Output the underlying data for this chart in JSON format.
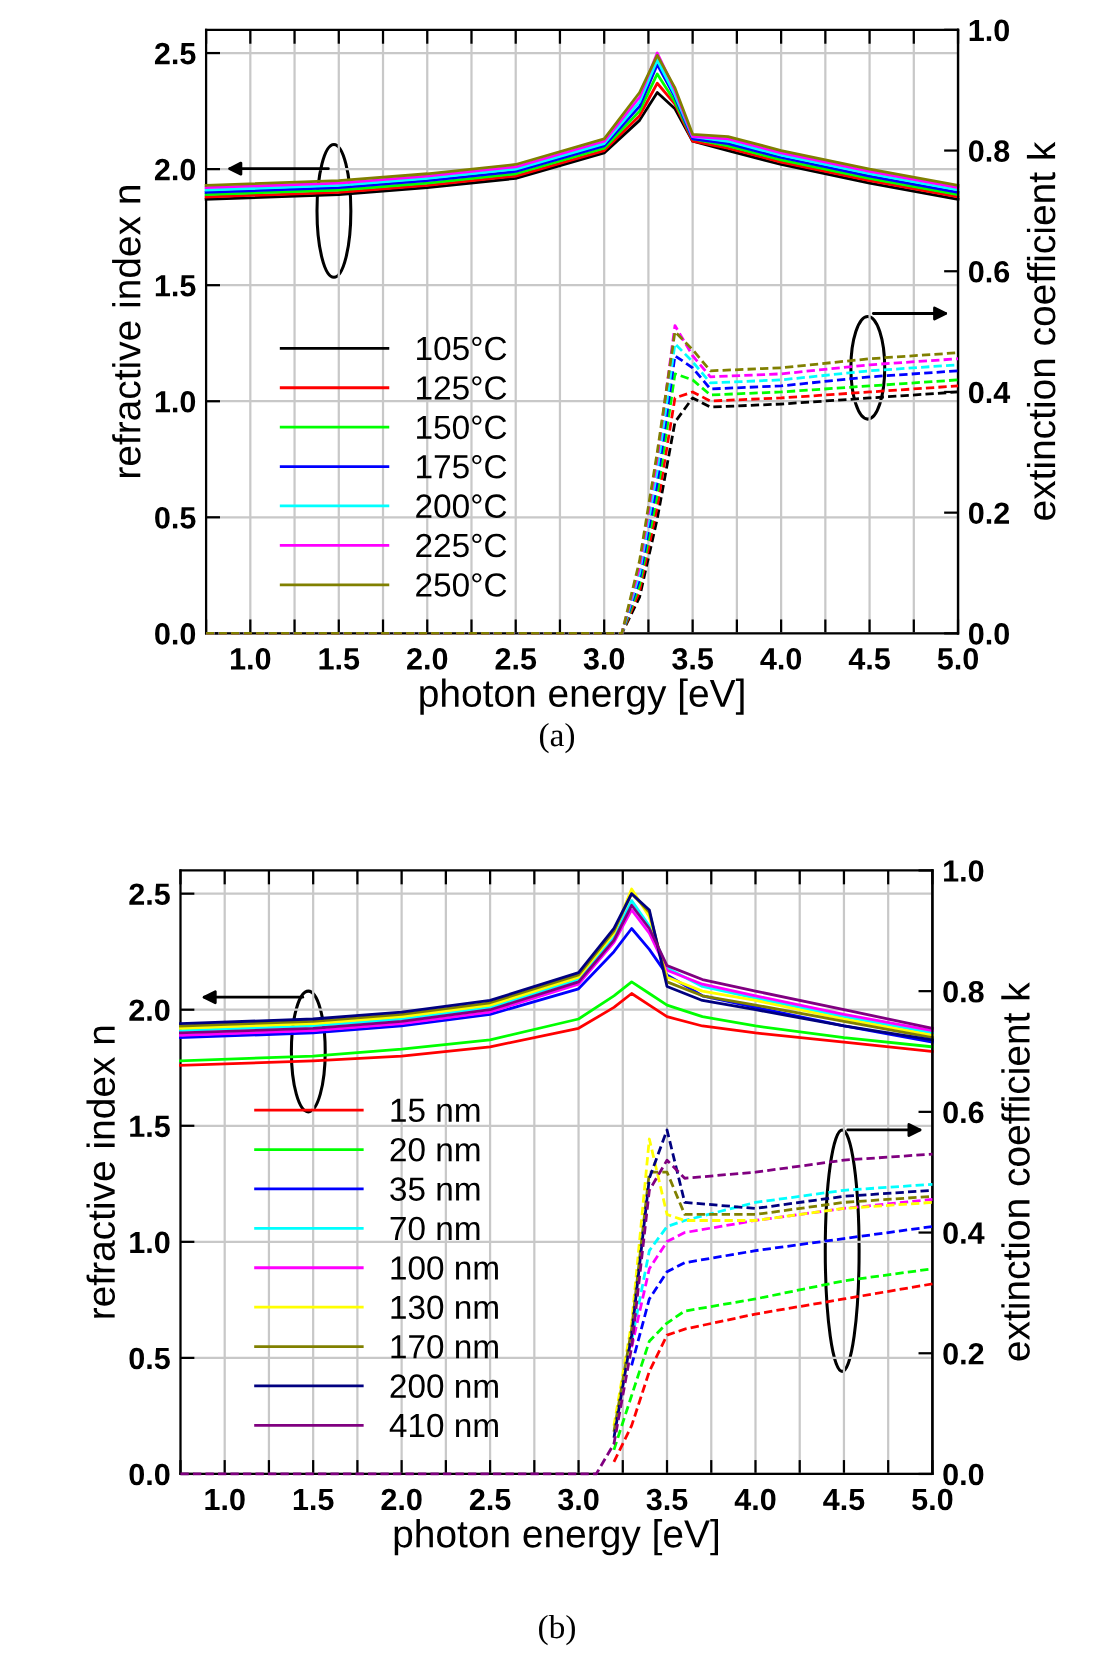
{
  "chart_data": [
    {
      "type": "line",
      "xlabel": "photon energy [eV]",
      "ylabel": "refractive index n",
      "y2label": "extinction coefficient k",
      "annotations": [
        "(a)"
      ],
      "xlim": [
        0.75,
        5.0
      ],
      "xticks": [
        {
          "value": 0.75,
          "label": null
        },
        {
          "value": 1.0,
          "label": "1.0"
        },
        {
          "value": 1.25,
          "label": null
        },
        {
          "value": 1.5,
          "label": "1.5"
        },
        {
          "value": 1.75,
          "label": null
        },
        {
          "value": 2.0,
          "label": "2.0"
        },
        {
          "value": 2.25,
          "label": null
        },
        {
          "value": 2.5,
          "label": "2.5"
        },
        {
          "value": 2.75,
          "label": null
        },
        {
          "value": 3.0,
          "label": "3.0"
        },
        {
          "value": 3.25,
          "label": null
        },
        {
          "value": 3.5,
          "label": "3.5"
        },
        {
          "value": 3.75,
          "label": null
        },
        {
          "value": 4.0,
          "label": "4.0"
        },
        {
          "value": 4.25,
          "label": null
        },
        {
          "value": 4.5,
          "label": "4.5"
        },
        {
          "value": 4.75,
          "label": null
        },
        {
          "value": 5.0,
          "label": "5.0"
        }
      ],
      "ylim": [
        0,
        2.6
      ],
      "yticks": [
        {
          "value": 0,
          "label": "0.0"
        },
        {
          "value": 0.5,
          "label": "0.5"
        },
        {
          "value": 1.0,
          "label": "1.0"
        },
        {
          "value": 1.5,
          "label": "1.5"
        },
        {
          "value": 2.0,
          "label": "2.0"
        },
        {
          "value": 2.5,
          "label": "2.5"
        }
      ],
      "y2lim": [
        0,
        1.0
      ],
      "y2ticks": [
        {
          "value": 0,
          "label": "0.0"
        },
        {
          "value": 0.2,
          "label": "0.2"
        },
        {
          "value": 0.4,
          "label": "0.4"
        },
        {
          "value": 0.6,
          "label": "0.6"
        },
        {
          "value": 0.8,
          "label": "0.8"
        },
        {
          "value": 1.0,
          "label": "1.0"
        }
      ],
      "grid": true,
      "legend": "bottom left",
      "series": [
        {
          "name": "105°C",
          "color": "#000000",
          "x": [
            0.75,
            1.5,
            2.0,
            2.5,
            3.0,
            3.2,
            3.3,
            3.4,
            3.5,
            3.7,
            4.0,
            4.5,
            5.0
          ],
          "values": [
            1.87,
            1.89,
            1.92,
            1.96,
            2.07,
            2.21,
            2.33,
            2.26,
            2.12,
            2.08,
            2.02,
            1.94,
            1.87
          ]
        },
        {
          "name": "125°C",
          "color": "#ff0000",
          "x": [
            0.75,
            1.5,
            2.0,
            2.5,
            3.0,
            3.2,
            3.3,
            3.4,
            3.5,
            3.7,
            4.0,
            4.5,
            5.0
          ],
          "values": [
            1.88,
            1.9,
            1.93,
            1.97,
            2.08,
            2.23,
            2.37,
            2.28,
            2.12,
            2.09,
            2.03,
            1.95,
            1.88
          ]
        },
        {
          "name": "150°C",
          "color": "#00ff00",
          "x": [
            0.75,
            1.5,
            2.0,
            2.5,
            3.0,
            3.2,
            3.3,
            3.4,
            3.5,
            3.7,
            4.0,
            4.5,
            5.0
          ],
          "values": [
            1.89,
            1.91,
            1.94,
            1.98,
            2.09,
            2.25,
            2.41,
            2.29,
            2.13,
            2.1,
            2.04,
            1.96,
            1.89
          ]
        },
        {
          "name": "175°C",
          "color": "#0000ff",
          "x": [
            0.75,
            1.5,
            2.0,
            2.5,
            3.0,
            3.2,
            3.3,
            3.4,
            3.5,
            3.7,
            4.0,
            4.5,
            5.0
          ],
          "values": [
            1.9,
            1.92,
            1.95,
            1.99,
            2.1,
            2.27,
            2.45,
            2.31,
            2.13,
            2.11,
            2.05,
            1.97,
            1.9
          ]
        },
        {
          "name": "200°C",
          "color": "#00ffff",
          "x": [
            0.75,
            1.5,
            2.0,
            2.5,
            3.0,
            3.2,
            3.3,
            3.4,
            3.5,
            3.7,
            4.0,
            4.5,
            5.0
          ],
          "values": [
            1.91,
            1.93,
            1.96,
            2.0,
            2.11,
            2.29,
            2.47,
            2.32,
            2.14,
            2.12,
            2.06,
            1.98,
            1.91
          ]
        },
        {
          "name": "225°C",
          "color": "#ff00ff",
          "x": [
            0.75,
            1.5,
            2.0,
            2.5,
            3.0,
            3.2,
            3.3,
            3.4,
            3.5,
            3.7,
            4.0,
            4.5,
            5.0
          ],
          "values": [
            1.92,
            1.94,
            1.97,
            2.01,
            2.12,
            2.31,
            2.5,
            2.34,
            2.14,
            2.13,
            2.07,
            1.99,
            1.92
          ]
        },
        {
          "name": "250°C",
          "color": "#808000",
          "x": [
            0.75,
            1.5,
            2.0,
            2.5,
            3.0,
            3.2,
            3.3,
            3.4,
            3.5,
            3.7,
            4.0,
            4.5,
            5.0
          ],
          "values": [
            1.93,
            1.95,
            1.98,
            2.02,
            2.13,
            2.33,
            2.49,
            2.35,
            2.15,
            2.14,
            2.08,
            2.0,
            1.93
          ]
        },
        {
          "color": "#000000",
          "axis": "y2",
          "line_style": "dashed",
          "x": [
            0.75,
            3.1,
            3.2,
            3.3,
            3.4,
            3.5,
            3.6,
            4.0,
            4.5,
            5.0
          ],
          "values": [
            0,
            0,
            0.06,
            0.19,
            0.35,
            0.39,
            0.375,
            0.38,
            0.39,
            0.4
          ]
        },
        {
          "color": "#ff0000",
          "axis": "y2",
          "line_style": "dashed",
          "x": [
            0.75,
            3.1,
            3.2,
            3.3,
            3.4,
            3.5,
            3.6,
            4.0,
            4.5,
            5.0
          ],
          "values": [
            0,
            0,
            0.07,
            0.21,
            0.39,
            0.4,
            0.385,
            0.39,
            0.4,
            0.41
          ]
        },
        {
          "color": "#00ff00",
          "axis": "y2",
          "line_style": "dashed",
          "x": [
            0.75,
            3.1,
            3.2,
            3.3,
            3.4,
            3.5,
            3.6,
            4.0,
            4.5,
            5.0
          ],
          "values": [
            0,
            0,
            0.08,
            0.23,
            0.43,
            0.42,
            0.395,
            0.4,
            0.41,
            0.42
          ]
        },
        {
          "color": "#0000ff",
          "axis": "y2",
          "line_style": "dashed",
          "x": [
            0.75,
            3.1,
            3.2,
            3.3,
            3.4,
            3.5,
            3.6,
            4.0,
            4.5,
            5.0
          ],
          "values": [
            0,
            0,
            0.09,
            0.25,
            0.46,
            0.44,
            0.405,
            0.41,
            0.425,
            0.435
          ]
        },
        {
          "color": "#00ffff",
          "axis": "y2",
          "line_style": "dashed",
          "x": [
            0.75,
            3.1,
            3.2,
            3.3,
            3.4,
            3.5,
            3.6,
            4.0,
            4.5,
            5.0
          ],
          "values": [
            0,
            0,
            0.1,
            0.27,
            0.48,
            0.45,
            0.415,
            0.42,
            0.435,
            0.445
          ]
        },
        {
          "color": "#ff00ff",
          "axis": "y2",
          "line_style": "dashed",
          "x": [
            0.75,
            3.1,
            3.2,
            3.3,
            3.4,
            3.5,
            3.6,
            4.0,
            4.5,
            5.0
          ],
          "values": [
            0,
            0,
            0.11,
            0.29,
            0.51,
            0.46,
            0.425,
            0.43,
            0.445,
            0.455
          ]
        },
        {
          "color": "#808000",
          "axis": "y2",
          "line_style": "dashed",
          "x": [
            0.75,
            3.1,
            3.2,
            3.3,
            3.4,
            3.5,
            3.6,
            4.0,
            4.5,
            5.0
          ],
          "values": [
            0,
            0,
            0.12,
            0.3,
            0.5,
            0.47,
            0.435,
            0.44,
            0.455,
            0.465
          ]
        }
      ]
    },
    {
      "type": "line",
      "xlabel": "photon energy [eV]",
      "ylabel": "refractive index n",
      "y2label": "extinction coefficient k",
      "annotations": [
        "(b)"
      ],
      "xlim": [
        0.75,
        5.0
      ],
      "xticks": [
        {
          "value": 0.75,
          "label": null
        },
        {
          "value": 1.0,
          "label": "1.0"
        },
        {
          "value": 1.25,
          "label": null
        },
        {
          "value": 1.5,
          "label": "1.5"
        },
        {
          "value": 1.75,
          "label": null
        },
        {
          "value": 2.0,
          "label": "2.0"
        },
        {
          "value": 2.25,
          "label": null
        },
        {
          "value": 2.5,
          "label": "2.5"
        },
        {
          "value": 2.75,
          "label": null
        },
        {
          "value": 3.0,
          "label": "3.0"
        },
        {
          "value": 3.25,
          "label": null
        },
        {
          "value": 3.5,
          "label": "3.5"
        },
        {
          "value": 3.75,
          "label": null
        },
        {
          "value": 4.0,
          "label": "4.0"
        },
        {
          "value": 4.25,
          "label": null
        },
        {
          "value": 4.5,
          "label": "4.5"
        },
        {
          "value": 4.75,
          "label": null
        },
        {
          "value": 5.0,
          "label": "5.0"
        }
      ],
      "ylim": [
        0,
        2.6
      ],
      "yticks": [
        {
          "value": 0,
          "label": "0.0"
        },
        {
          "value": 0.5,
          "label": "0.5"
        },
        {
          "value": 1.0,
          "label": "1.0"
        },
        {
          "value": 1.5,
          "label": "1.5"
        },
        {
          "value": 2.0,
          "label": "2.0"
        },
        {
          "value": 2.5,
          "label": "2.5"
        }
      ],
      "y2lim": [
        0,
        1.0
      ],
      "y2ticks": [
        {
          "value": 0,
          "label": "0.0"
        },
        {
          "value": 0.2,
          "label": "0.2"
        },
        {
          "value": 0.4,
          "label": "0.4"
        },
        {
          "value": 0.6,
          "label": "0.6"
        },
        {
          "value": 0.8,
          "label": "0.8"
        },
        {
          "value": 1.0,
          "label": "1.0"
        }
      ],
      "grid": true,
      "legend": "bottom left",
      "series": [
        {
          "name": "15 nm",
          "color": "#ff0000",
          "x": [
            0.75,
            1.5,
            2.0,
            2.5,
            3.0,
            3.2,
            3.3,
            3.4,
            3.5,
            3.7,
            4.0,
            4.5,
            5.0
          ],
          "values": [
            1.76,
            1.78,
            1.8,
            1.84,
            1.92,
            2.01,
            2.07,
            2.02,
            1.97,
            1.93,
            1.9,
            1.86,
            1.82
          ]
        },
        {
          "name": "20 nm",
          "color": "#00ff00",
          "x": [
            0.75,
            1.5,
            2.0,
            2.5,
            3.0,
            3.2,
            3.3,
            3.4,
            3.5,
            3.7,
            4.0,
            4.5,
            5.0
          ],
          "values": [
            1.78,
            1.8,
            1.83,
            1.87,
            1.96,
            2.06,
            2.12,
            2.07,
            2.02,
            1.97,
            1.93,
            1.88,
            1.84
          ]
        },
        {
          "name": "35 nm",
          "color": "#0000ff",
          "x": [
            0.75,
            1.5,
            2.0,
            2.5,
            3.0,
            3.2,
            3.3,
            3.4,
            3.5,
            3.7,
            4.0,
            4.5,
            5.0
          ],
          "values": [
            1.88,
            1.9,
            1.93,
            1.98,
            2.09,
            2.25,
            2.35,
            2.26,
            2.15,
            2.06,
            2.01,
            1.93,
            1.86
          ]
        },
        {
          "name": "70 nm",
          "color": "#00ffff",
          "x": [
            0.75,
            1.5,
            2.0,
            2.5,
            3.0,
            3.2,
            3.3,
            3.4,
            3.5,
            3.7,
            4.0,
            4.5,
            5.0
          ],
          "values": [
            1.91,
            1.93,
            1.96,
            2.01,
            2.13,
            2.31,
            2.47,
            2.36,
            2.18,
            2.1,
            2.05,
            1.97,
            1.9
          ]
        },
        {
          "name": "100 nm",
          "color": "#ff00ff",
          "x": [
            0.75,
            1.5,
            2.0,
            2.5,
            3.0,
            3.2,
            3.3,
            3.4,
            3.5,
            3.7,
            4.0,
            4.5,
            5.0
          ],
          "values": [
            1.89,
            1.91,
            1.94,
            1.99,
            2.11,
            2.29,
            2.43,
            2.33,
            2.17,
            2.11,
            2.06,
            1.98,
            1.91
          ]
        },
        {
          "name": "130 nm",
          "color": "#ffff00",
          "x": [
            0.75,
            1.5,
            2.0,
            2.5,
            3.0,
            3.2,
            3.3,
            3.4,
            3.5,
            3.7,
            4.0,
            4.5,
            5.0
          ],
          "values": [
            1.92,
            1.94,
            1.97,
            2.02,
            2.14,
            2.33,
            2.52,
            2.4,
            2.14,
            2.08,
            2.04,
            1.96,
            1.89
          ]
        },
        {
          "name": "170 nm",
          "color": "#808000",
          "x": [
            0.75,
            1.5,
            2.0,
            2.5,
            3.0,
            3.2,
            3.3,
            3.4,
            3.5,
            3.7,
            4.0,
            4.5,
            5.0
          ],
          "values": [
            1.93,
            1.95,
            1.98,
            2.03,
            2.15,
            2.34,
            2.5,
            2.42,
            2.12,
            2.06,
            2.02,
            1.95,
            1.88
          ]
        },
        {
          "name": "200 nm",
          "color": "#000080",
          "x": [
            0.75,
            1.5,
            2.0,
            2.5,
            3.0,
            3.2,
            3.3,
            3.4,
            3.5,
            3.7,
            4.0,
            4.5,
            5.0
          ],
          "values": [
            1.94,
            1.96,
            1.99,
            2.04,
            2.16,
            2.35,
            2.5,
            2.43,
            2.1,
            2.04,
            2.0,
            1.93,
            1.87
          ]
        },
        {
          "name": "410 nm",
          "color": "#800080",
          "x": [
            0.75,
            1.5,
            2.0,
            2.5,
            3.0,
            3.2,
            3.3,
            3.4,
            3.5,
            3.7,
            4.0,
            4.5,
            5.0
          ],
          "values": [
            1.9,
            1.92,
            1.95,
            2.0,
            2.12,
            2.3,
            2.45,
            2.35,
            2.19,
            2.13,
            2.08,
            2.0,
            1.92
          ]
        },
        {
          "color": "#ff0000",
          "axis": "y2",
          "line_style": "dashed",
          "x": [
            3.2,
            3.3,
            3.4,
            3.5,
            3.6,
            4.0,
            4.5,
            5.0
          ],
          "values": [
            0.02,
            0.08,
            0.17,
            0.23,
            0.24,
            0.265,
            0.29,
            0.315
          ]
        },
        {
          "color": "#00ff00",
          "axis": "y2",
          "line_style": "dashed",
          "x": [
            3.2,
            3.3,
            3.4,
            3.5,
            3.6,
            4.0,
            4.5,
            5.0
          ],
          "values": [
            0.04,
            0.13,
            0.22,
            0.25,
            0.27,
            0.29,
            0.32,
            0.34
          ]
        },
        {
          "color": "#0000ff",
          "axis": "y2",
          "line_style": "dashed",
          "x": [
            3.3,
            3.4,
            3.5,
            3.6,
            4.0,
            4.5,
            5.0
          ],
          "values": [
            0.18,
            0.29,
            0.335,
            0.35,
            0.37,
            0.39,
            0.41
          ]
        },
        {
          "color": "#00ffff",
          "axis": "y2",
          "line_style": "dashed",
          "x": [
            3.3,
            3.4,
            3.5,
            3.6,
            4.0,
            4.5,
            5.0
          ],
          "values": [
            0.22,
            0.37,
            0.41,
            0.42,
            0.45,
            0.47,
            0.48
          ]
        },
        {
          "color": "#ff00ff",
          "axis": "y2",
          "line_style": "dashed",
          "x": [
            3.3,
            3.4,
            3.5,
            3.6,
            4.0,
            4.5,
            5.0
          ],
          "values": [
            0.21,
            0.34,
            0.385,
            0.4,
            0.42,
            0.44,
            0.455
          ]
        },
        {
          "color": "#ffff00",
          "axis": "y2",
          "line_style": "dashed",
          "x": [
            3.2,
            3.3,
            3.4,
            3.5,
            3.6,
            4.0,
            4.5,
            5.0
          ],
          "values": [
            0.08,
            0.25,
            0.555,
            0.43,
            0.42,
            0.42,
            0.44,
            0.45
          ]
        },
        {
          "color": "#808000",
          "axis": "y2",
          "line_style": "dashed",
          "x": [
            3.2,
            3.3,
            3.4,
            3.5,
            3.6,
            4.0,
            4.5,
            5.0
          ],
          "values": [
            0.07,
            0.24,
            0.5,
            0.5,
            0.43,
            0.43,
            0.45,
            0.46
          ]
        },
        {
          "color": "#000080",
          "axis": "y2",
          "line_style": "dashed",
          "x": [
            3.2,
            3.3,
            3.4,
            3.5,
            3.6,
            4.0,
            4.5,
            5.0
          ],
          "values": [
            0.06,
            0.23,
            0.49,
            0.57,
            0.45,
            0.44,
            0.46,
            0.47
          ]
        },
        {
          "color": "#800080",
          "axis": "y2",
          "line_style": "dashed",
          "x": [
            0.75,
            3.1,
            3.2,
            3.3,
            3.4,
            3.5,
            3.6,
            4.0,
            4.5,
            5.0
          ],
          "values": [
            0,
            0,
            0.05,
            0.21,
            0.47,
            0.52,
            0.49,
            0.5,
            0.52,
            0.53
          ]
        }
      ]
    }
  ]
}
